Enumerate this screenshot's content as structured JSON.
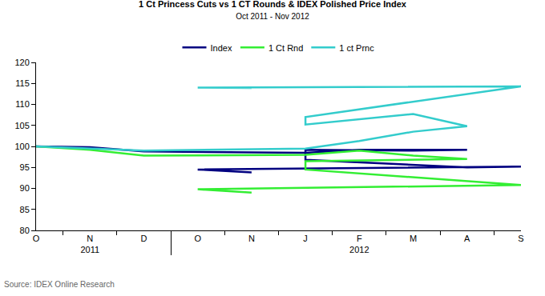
{
  "chart_data": {
    "type": "line",
    "title": "1 Ct Princess Cuts vs 1 CT Rounds & IDEX Polished Price Index",
    "subtitle": "Oct 2011 - Nov 2012",
    "source": "Source: IDEX Online Research",
    "categories": [
      "O",
      "N",
      "D",
      "J",
      "F",
      "M",
      "A",
      "M",
      "J",
      "J",
      "A",
      "S",
      "O",
      "N"
    ],
    "category_years": [
      "2011",
      "2011",
      "2011",
      "2012",
      "2012",
      "2012",
      "2012",
      "2012",
      "2012",
      "2012",
      "2012",
      "2012",
      "2012",
      "2012"
    ],
    "series": [
      {
        "name": "Index",
        "color": "#000080",
        "values": [
          100,
          99.8,
          98.8,
          98.5,
          99.2,
          99.2,
          99.2,
          99,
          99.2,
          96.8,
          95,
          95.2,
          94.5,
          93.8
        ]
      },
      {
        "name": "1 Ct Rnd",
        "color": "#33ee33",
        "values": [
          100,
          99.2,
          97.8,
          98,
          99,
          97.8,
          97,
          96.8,
          96.5,
          94.5,
          91.7,
          90.8,
          89.8,
          89
        ]
      },
      {
        "name": "1 ct Prnc",
        "color": "#33cccc",
        "values": [
          100,
          99.5,
          99,
          99.5,
          101.3,
          103.5,
          104.8,
          107.7,
          105.2,
          107,
          112.5,
          114.3,
          114,
          113.9
        ]
      }
    ],
    "ylim": [
      80,
      120
    ],
    "yticks": [
      80,
      85,
      90,
      95,
      100,
      105,
      110,
      115,
      120
    ],
    "grid": false,
    "legend": "top"
  }
}
